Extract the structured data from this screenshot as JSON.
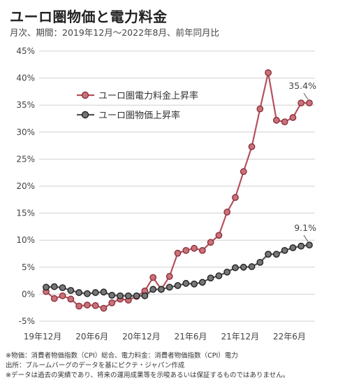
{
  "title": "ユーロ圏物価と電力料金",
  "subtitle": "月次、期間：2019年12月〜2022年8月、前年同月比",
  "notes": [
    "※物価：消費者物価指数（CPI）総合、電力料金：消費者物価指数（CPI）電力",
    "出所：ブルームバーグのデータを基にピクテ・ジャパン作成",
    "※データは過去の実績であり、将来の運用成果等を示唆あるいは保証するものではありません。"
  ],
  "colors": {
    "electricity": "#b5525c",
    "cpi": "#555555",
    "grid": "#d0d0d0"
  },
  "chart_data": {
    "type": "line",
    "x": [
      "19年12月",
      "20年1月",
      "20年2月",
      "20年3月",
      "20年4月",
      "20年5月",
      "20年6月",
      "20年7月",
      "20年8月",
      "20年9月",
      "20年10月",
      "20年11月",
      "20年12月",
      "21年1月",
      "21年2月",
      "21年3月",
      "21年4月",
      "21年5月",
      "21年6月",
      "21年7月",
      "21年8月",
      "21年9月",
      "21年10月",
      "21年11月",
      "21年12月",
      "22年1月",
      "22年2月",
      "22年3月",
      "22年4月",
      "22年5月",
      "22年6月",
      "22年7月",
      "22年8月"
    ],
    "x_tick_labels": [
      "19年12月",
      "20年6月",
      "20年12月",
      "21年6月",
      "21年12月",
      "22年6月"
    ],
    "x_tick_indices": [
      0,
      6,
      12,
      18,
      24,
      30
    ],
    "y_tick_labels": [
      "-5%",
      "0%",
      "5%",
      "10%",
      "15%",
      "20%",
      "25%",
      "30%",
      "35%",
      "40%",
      "45%"
    ],
    "ylim": [
      -5,
      45
    ],
    "grid": true,
    "legend_placement": "upper-left",
    "series": [
      {
        "name": "ユーロ圏電力料金上昇率",
        "values": [
          0.5,
          -0.8,
          -0.3,
          -0.9,
          -2.2,
          -2.0,
          -2.1,
          -2.6,
          -1.6,
          -0.9,
          -1.1,
          -0.4,
          0.6,
          3.1,
          0.9,
          3.3,
          7.6,
          8.1,
          8.5,
          8.1,
          9.6,
          10.9,
          15.2,
          17.9,
          22.7,
          27.3,
          34.3,
          41.0,
          32.2,
          31.9,
          32.7,
          35.4,
          35.4
        ]
      },
      {
        "name": "ユーロ圏物価上昇率",
        "values": [
          1.3,
          1.4,
          1.2,
          0.7,
          0.3,
          0.1,
          0.3,
          0.4,
          -0.2,
          -0.3,
          -0.3,
          -0.3,
          -0.3,
          0.9,
          0.9,
          1.3,
          1.6,
          2.0,
          1.9,
          2.2,
          3.0,
          3.4,
          4.1,
          4.9,
          5.0,
          5.1,
          5.9,
          7.4,
          7.4,
          8.1,
          8.6,
          8.9,
          9.1
        ]
      }
    ],
    "end_labels": [
      "35.4%",
      "9.1%"
    ]
  }
}
